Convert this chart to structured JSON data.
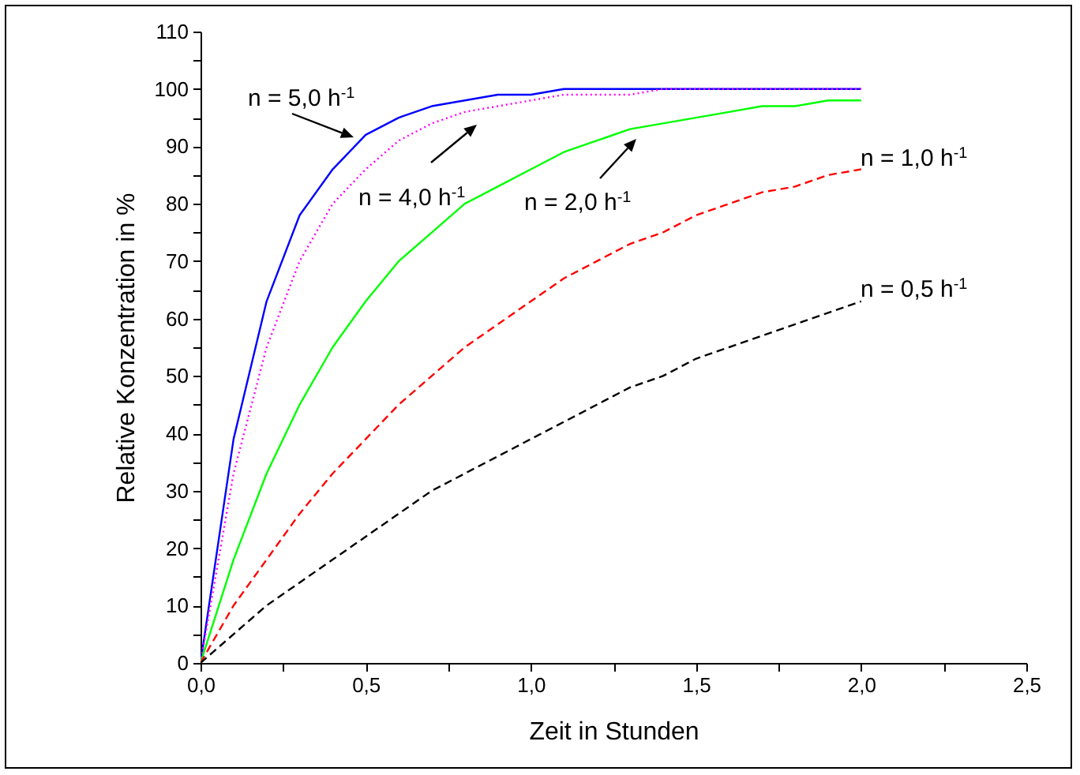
{
  "chart_data": {
    "type": "line",
    "xlabel": "Zeit in Stunden",
    "ylabel": "Relative Konzentration in %",
    "annotations": [
      "n = 5,0 h$^{-1}$",
      "n = 4,0 h$^{-1}$",
      "n = 2,0 h$^{-1}$",
      "n = 1,0 h$^{-1}$",
      "n = 0,5 h$^{-1}$"
    ],
    "x": [
      0,
      0.1,
      0.2,
      0.3,
      0.4,
      0.5,
      0.6,
      0.7,
      0.8,
      0.9,
      1.0,
      1.1,
      1.2,
      1.3,
      1.4,
      1.5,
      1.6,
      1.7,
      1.8,
      1.9,
      2.0
    ],
    "series": [
      {
        "color": "#0000ff",
        "line_style": "solid",
        "values": [
          0,
          39,
          63,
          78,
          86,
          92,
          95,
          97,
          98,
          99,
          99,
          100,
          100,
          100,
          100,
          100,
          100,
          100,
          100,
          100,
          100
        ]
      },
      {
        "color": "#ff00ff",
        "line_style": "dotted",
        "values": [
          0,
          33,
          55,
          70,
          80,
          86,
          91,
          94,
          96,
          97,
          98,
          99,
          99,
          99,
          100,
          100,
          100,
          100,
          100,
          100,
          100
        ]
      },
      {
        "color": "#00ff00",
        "line_style": "solid",
        "values": [
          0,
          18,
          33,
          45,
          55,
          63,
          70,
          75,
          80,
          83,
          86,
          89,
          91,
          93,
          94,
          95,
          96,
          97,
          97,
          98,
          98
        ]
      },
      {
        "color": "#ff0000",
        "line_style": "dashed",
        "values": [
          0,
          10,
          18,
          26,
          33,
          39,
          45,
          50,
          55,
          59,
          63,
          67,
          70,
          73,
          75,
          78,
          80,
          82,
          83,
          85,
          86
        ]
      },
      {
        "color": "#000000",
        "line_style": "dashed",
        "values": [
          0,
          5,
          10,
          14,
          18,
          22,
          26,
          30,
          33,
          36,
          39,
          42,
          45,
          48,
          50,
          53,
          55,
          57,
          59,
          61,
          63
        ]
      }
    ],
    "xlim": [
      0,
      2.5
    ],
    "xticks": [
      {
        "value": 0,
        "label": "0,0"
      },
      {
        "value": 0.25,
        "label": null
      },
      {
        "value": 0.5,
        "label": "0,5"
      },
      {
        "value": 0.75,
        "label": null
      },
      {
        "value": 1,
        "label": "1,0"
      },
      {
        "value": 1.25,
        "label": null
      },
      {
        "value": 1.5,
        "label": "1,5"
      },
      {
        "value": 1.75,
        "label": null
      },
      {
        "value": 2,
        "label": "2,0"
      },
      {
        "value": 2.25,
        "label": null
      },
      {
        "value": 2.5,
        "label": "2,5"
      }
    ],
    "ylim": [
      0,
      110
    ],
    "yticks": [
      0,
      {
        "value": 5,
        "label": null
      },
      10,
      {
        "value": 15,
        "label": null
      },
      20,
      {
        "value": 25,
        "label": null
      },
      30,
      {
        "value": 35,
        "label": null
      },
      40,
      {
        "value": 45,
        "label": null
      },
      50,
      {
        "value": 55,
        "label": null
      },
      60,
      {
        "value": 65,
        "label": null
      },
      70,
      {
        "value": 75,
        "label": null
      },
      80,
      {
        "value": 85,
        "label": null
      },
      90,
      {
        "value": 95,
        "label": null
      },
      100,
      {
        "value": 105,
        "label": null
      },
      110
    ],
    "grid": false,
    "marker": "none"
  }
}
